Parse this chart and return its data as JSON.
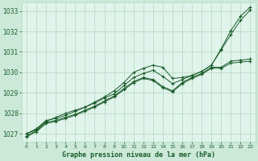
{
  "bg_color": "#cce8d8",
  "plot_bg_color": "#e0f4ec",
  "grid_color": "#b0d8c0",
  "line_color": "#1a5c2a",
  "marker_color": "#1a5c2a",
  "xlabel": "Graphe pression niveau de la mer (hPa)",
  "xlabel_color": "#1a5c2a",
  "tick_color": "#1a5c2a",
  "xlim": [
    -0.5,
    23.5
  ],
  "ylim": [
    1026.6,
    1033.4
  ],
  "yticks": [
    1027,
    1028,
    1029,
    1030,
    1031,
    1032,
    1033
  ],
  "xticks": [
    0,
    1,
    2,
    3,
    4,
    5,
    6,
    7,
    8,
    9,
    10,
    11,
    12,
    13,
    14,
    15,
    16,
    17,
    18,
    19,
    20,
    21,
    22,
    23
  ],
  "series": [
    [
      1027.0,
      1027.2,
      1027.6,
      1027.8,
      1028.0,
      1028.15,
      1028.3,
      1028.55,
      1028.8,
      1029.1,
      1029.5,
      1030.0,
      1030.2,
      1030.35,
      1030.25,
      1029.7,
      1029.75,
      1029.85,
      1030.05,
      1030.35,
      1031.15,
      1032.05,
      1032.75,
      1033.2
    ],
    [
      1027.0,
      1027.25,
      1027.65,
      1027.75,
      1027.9,
      1028.1,
      1028.3,
      1028.5,
      1028.75,
      1028.95,
      1029.35,
      1029.75,
      1029.95,
      1030.1,
      1029.8,
      1029.45,
      1029.65,
      1029.85,
      1030.05,
      1030.35,
      1031.1,
      1031.85,
      1032.55,
      1033.05
    ],
    [
      1026.9,
      1027.15,
      1027.55,
      1027.65,
      1027.8,
      1027.95,
      1028.15,
      1028.35,
      1028.6,
      1028.85,
      1029.2,
      1029.55,
      1029.75,
      1029.65,
      1029.3,
      1029.1,
      1029.5,
      1029.75,
      1029.95,
      1030.25,
      1030.25,
      1030.55,
      1030.6,
      1030.65
    ],
    [
      1026.85,
      1027.1,
      1027.5,
      1027.6,
      1027.75,
      1027.9,
      1028.1,
      1028.3,
      1028.55,
      1028.8,
      1029.15,
      1029.5,
      1029.7,
      1029.6,
      1029.25,
      1029.05,
      1029.45,
      1029.7,
      1029.9,
      1030.2,
      1030.2,
      1030.45,
      1030.5,
      1030.55
    ]
  ]
}
